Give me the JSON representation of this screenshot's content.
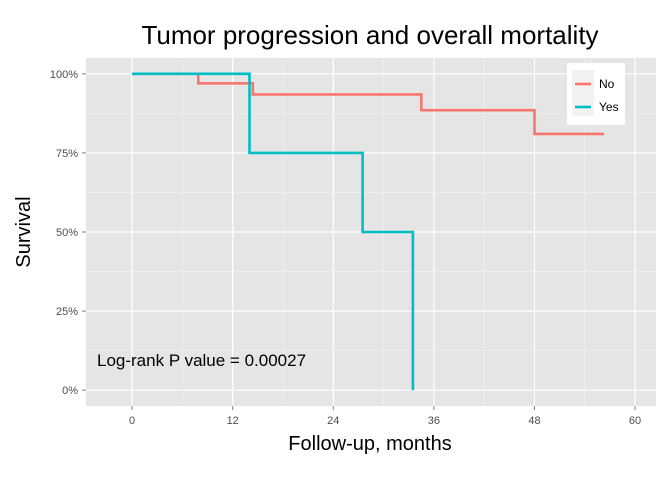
{
  "chart_data": {
    "type": "line",
    "step": true,
    "title": "Tumor progression and overall mortality",
    "xlabel": "Follow-up, months",
    "ylabel": "Survival",
    "xlim": [
      -5.5,
      62.5
    ],
    "ylim": [
      -0.05,
      1.05
    ],
    "xticks": [
      0,
      12,
      24,
      36,
      48,
      60
    ],
    "xtick_labels": [
      "0",
      "12",
      "24",
      "36",
      "48",
      "60"
    ],
    "yticks": [
      0,
      0.25,
      0.5,
      0.75,
      1.0
    ],
    "ytick_labels": [
      "0%",
      "25%",
      "50%",
      "75%",
      "100%"
    ],
    "grid": true,
    "legend_position": "top-right",
    "annotation": "Log-rank P value = 0.00027",
    "series": [
      {
        "name": "No",
        "color": "#F8766D",
        "points": [
          [
            0,
            1.0
          ],
          [
            7.9,
            1.0
          ],
          [
            7.9,
            0.97
          ],
          [
            14.4,
            0.97
          ],
          [
            14.4,
            0.935
          ],
          [
            34.5,
            0.935
          ],
          [
            34.5,
            0.885
          ],
          [
            48.0,
            0.885
          ],
          [
            48.0,
            0.81
          ],
          [
            56.3,
            0.81
          ]
        ]
      },
      {
        "name": "Yes",
        "color": "#00BFC4",
        "points": [
          [
            0,
            1.0
          ],
          [
            14.0,
            1.0
          ],
          [
            14.0,
            0.75
          ],
          [
            27.5,
            0.75
          ],
          [
            27.5,
            0.5
          ],
          [
            33.5,
            0.5
          ],
          [
            33.5,
            0.0
          ]
        ]
      }
    ]
  }
}
